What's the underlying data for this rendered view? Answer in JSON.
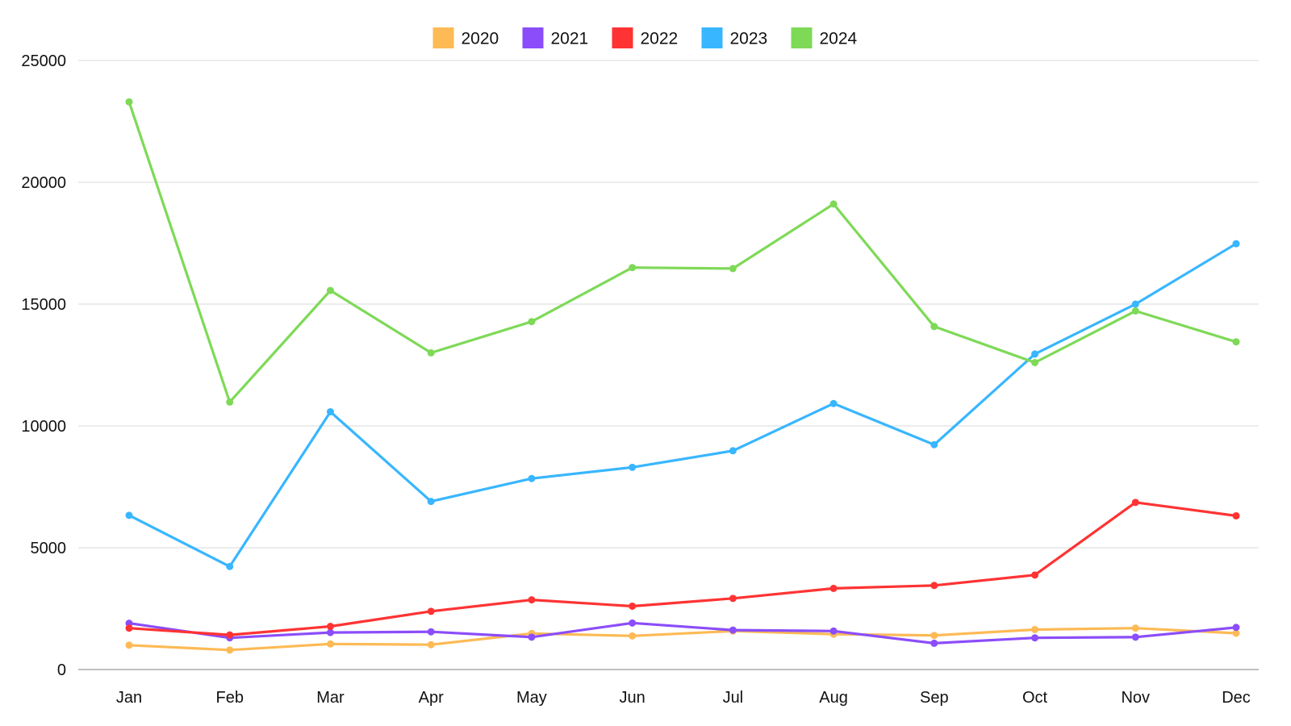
{
  "chart_data": {
    "type": "line",
    "title": "",
    "xlabel": "",
    "ylabel": "",
    "categories": [
      "Jan",
      "Feb",
      "Mar",
      "Apr",
      "May",
      "Jun",
      "Jul",
      "Aug",
      "Sep",
      "Oct",
      "Nov",
      "Dec"
    ],
    "ylim": [
      0,
      25000
    ],
    "yticks": [
      0,
      5000,
      10000,
      15000,
      20000,
      25000
    ],
    "grid": true,
    "legend_position": "top-center",
    "series": [
      {
        "name": "2020",
        "color": "#FDBA55",
        "values": [
          1000,
          800,
          1050,
          1020,
          1480,
          1380,
          1580,
          1450,
          1400,
          1640,
          1700,
          1490
        ]
      },
      {
        "name": "2021",
        "color": "#8B4DFA",
        "values": [
          1900,
          1300,
          1520,
          1550,
          1330,
          1910,
          1620,
          1580,
          1080,
          1300,
          1330,
          1730
        ]
      },
      {
        "name": "2022",
        "color": "#FF3333",
        "values": [
          1700,
          1420,
          1770,
          2390,
          2860,
          2600,
          2920,
          3330,
          3450,
          3880,
          6860,
          6310
        ]
      },
      {
        "name": "2023",
        "color": "#38B6FF",
        "values": [
          6330,
          4230,
          10580,
          6900,
          7840,
          8300,
          8980,
          10920,
          9230,
          12950,
          15000,
          17480
        ]
      },
      {
        "name": "2024",
        "color": "#7ED957",
        "values": [
          23300,
          10980,
          15560,
          13000,
          14280,
          16500,
          16460,
          19110,
          14080,
          12600,
          14720,
          13450
        ]
      }
    ]
  }
}
